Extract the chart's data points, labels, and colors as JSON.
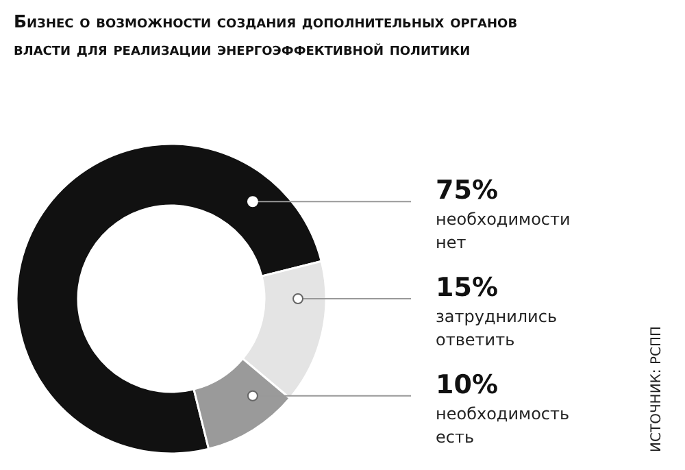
{
  "chart_data": {
    "type": "donut",
    "title": "Бизнес о возможности создания дополнительных органов власти для реализации энергоэффективной политики",
    "categories": [
      "необходимости нет",
      "затруднились ответить",
      "необходимость есть"
    ],
    "values": [
      75,
      15,
      10
    ],
    "value_labels": [
      "75%",
      "15%",
      "10%"
    ],
    "colors": [
      "#111111",
      "#e4e4e4",
      "#9a9a9a"
    ],
    "annotations": [
      "ИСТОЧНИК: РСПП"
    ]
  }
}
